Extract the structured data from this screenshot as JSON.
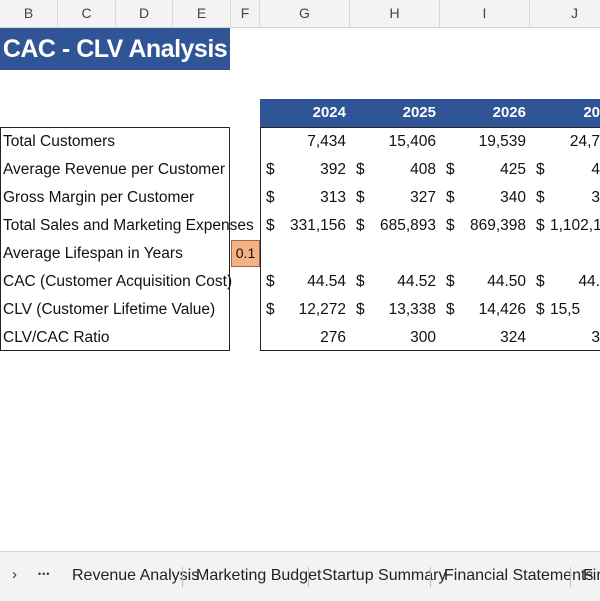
{
  "column_headers": [
    "B",
    "C",
    "D",
    "E",
    "F",
    "G",
    "H",
    "I",
    "J"
  ],
  "title": "CAC - CLV Analysis",
  "years": [
    "2024",
    "2025",
    "2026",
    "20"
  ],
  "rows": [
    {
      "label": "Total Customers",
      "cur": false,
      "values": [
        "7,434",
        "15,406",
        "19,539",
        "24,7"
      ]
    },
    {
      "label": "Average Revenue per Customer",
      "cur": true,
      "values": [
        "392",
        "408",
        "425",
        "4"
      ]
    },
    {
      "label": "Gross Margin per Customer",
      "cur": true,
      "values": [
        "313",
        "327",
        "340",
        "3"
      ]
    },
    {
      "label": "Total Sales and Marketing Expenses",
      "cur": true,
      "values": [
        "331,156",
        "685,893",
        "869,398",
        "1,102,1"
      ]
    },
    {
      "label": "Average Lifespan in Years",
      "cur": false,
      "values": [
        "",
        "",
        "",
        ""
      ]
    },
    {
      "label": "CAC (Customer Acquisition Cost)",
      "cur": true,
      "values": [
        "44.54",
        "44.52",
        "44.50",
        "44."
      ]
    },
    {
      "label": "CLV (Customer Lifetime Value)",
      "cur": true,
      "values": [
        "12,272",
        "13,338",
        "14,426",
        "15,5"
      ]
    },
    {
      "label": "CLV/CAC Ratio",
      "cur": false,
      "values": [
        "276",
        "300",
        "324",
        "3"
      ]
    }
  ],
  "currency_symbol": "$",
  "lifespan_value": "0.1",
  "sheet_tabs": {
    "nav_next": "›",
    "nav_more": "•••",
    "tabs": [
      "Revenue Analysis",
      "Marketing Budget",
      "Startup Summary",
      "Financial Statements",
      "Fin"
    ]
  }
}
